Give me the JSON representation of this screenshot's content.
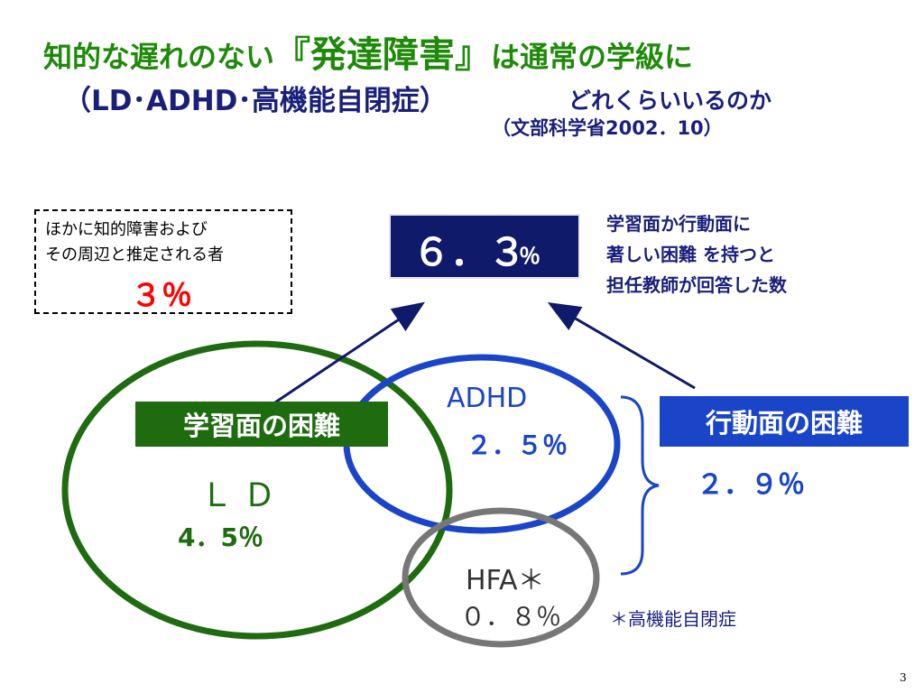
{
  "title": {
    "line1_prefix": "知的な遅れのない",
    "line1_emph": "『発達障害』",
    "line1_suffix": "は通常の学級に",
    "line2_left": "（LD･ADHD･高機能自閉症）",
    "line2_right": "どれくらいいるのか",
    "source": "（文部科学省2002．10）"
  },
  "note": {
    "line1": "ほかに知的障害および",
    "line2": "その周辺と推定される者",
    "percent": "３％"
  },
  "total": {
    "value": "６．３",
    "unit": "％"
  },
  "total_description": {
    "line1": "学習面か行動面に",
    "line2": "著しい困難 を持つと",
    "line3": "担任教師が回答した数"
  },
  "categories": {
    "learning_label": "学習面の困難",
    "behavior_label": "行動面の困難",
    "behavior_value": "２．９％"
  },
  "groups": {
    "ld_name": "Ｌ Ｄ",
    "ld_value": "4．5％",
    "adhd_name": "ADHD",
    "adhd_value": "２．５％",
    "hfa_name": "HFA＊",
    "hfa_value": "０．８％",
    "hfa_note": "＊高機能自閉症"
  },
  "colors": {
    "learning": "#1f6b10",
    "adhd": "#1a45c8",
    "hfa": "#777777",
    "total_box": "#0f1a6b",
    "arrow": "#0f1a6b"
  },
  "page_number": "3"
}
